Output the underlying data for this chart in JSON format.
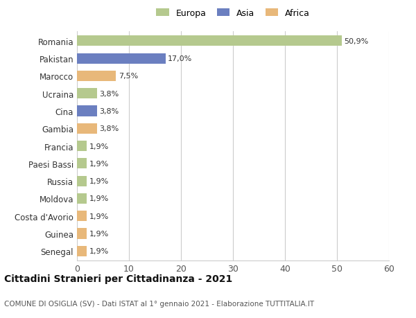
{
  "categories": [
    "Romania",
    "Pakistan",
    "Marocco",
    "Ucraina",
    "Cina",
    "Gambia",
    "Francia",
    "Paesi Bassi",
    "Russia",
    "Moldova",
    "Costa d'Avorio",
    "Guinea",
    "Senegal"
  ],
  "values": [
    50.9,
    17.0,
    7.5,
    3.8,
    3.8,
    3.8,
    1.9,
    1.9,
    1.9,
    1.9,
    1.9,
    1.9,
    1.9
  ],
  "labels": [
    "50,9%",
    "17,0%",
    "7,5%",
    "3,8%",
    "3,8%",
    "3,8%",
    "1,9%",
    "1,9%",
    "1,9%",
    "1,9%",
    "1,9%",
    "1,9%",
    "1,9%"
  ],
  "colors": [
    "#b5c98e",
    "#6b7fc0",
    "#e8b87a",
    "#b5c98e",
    "#6b7fc0",
    "#e8b87a",
    "#b5c98e",
    "#b5c98e",
    "#b5c98e",
    "#b5c98e",
    "#e8b87a",
    "#e8b87a",
    "#e8b87a"
  ],
  "legend_labels": [
    "Europa",
    "Asia",
    "Africa"
  ],
  "legend_colors": [
    "#b5c98e",
    "#6b7fc0",
    "#e8b87a"
  ],
  "xlim": [
    0,
    60
  ],
  "xticks": [
    0,
    10,
    20,
    30,
    40,
    50,
    60
  ],
  "title": "Cittadini Stranieri per Cittadinanza - 2021",
  "subtitle": "COMUNE DI OSIGLIA (SV) - Dati ISTAT al 1° gennaio 2021 - Elaborazione TUTTITALIA.IT",
  "bg_color": "#ffffff",
  "grid_color": "#cccccc",
  "bar_height": 0.6
}
